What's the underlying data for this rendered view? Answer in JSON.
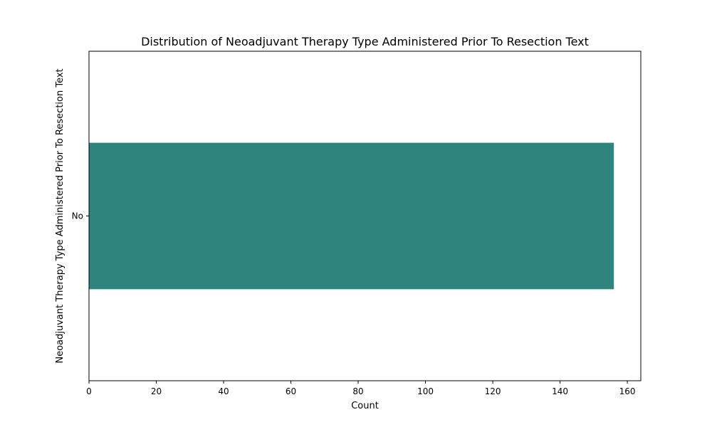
{
  "chart_data": {
    "type": "bar",
    "orientation": "horizontal",
    "title": "Distribution of Neoadjuvant Therapy Type Administered Prior To Resection Text",
    "xlabel": "Count",
    "ylabel": "Neoadjuvant Therapy Type Administered Prior To Resection Text",
    "categories": [
      "No"
    ],
    "values": [
      156
    ],
    "xlim": [
      0,
      164
    ],
    "xticks": [
      0,
      20,
      40,
      60,
      80,
      100,
      120,
      140,
      160
    ],
    "grid": false,
    "legend": "none",
    "bar_color": "#2e847e"
  }
}
